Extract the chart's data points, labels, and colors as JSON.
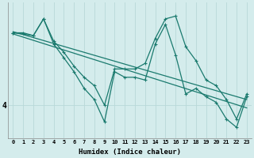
{
  "xlabel": "Humidex (Indice chaleur)",
  "ylabel": "",
  "background_color": "#d4ecec",
  "grid_color": "#b8d8d8",
  "line_color": "#1a7a6e",
  "x_ticks": [
    0,
    1,
    2,
    3,
    4,
    5,
    6,
    7,
    8,
    9,
    10,
    11,
    12,
    13,
    14,
    15,
    16,
    17,
    18,
    19,
    20,
    21,
    22,
    23
  ],
  "series": [
    {
      "x": [
        0,
        1,
        2,
        3,
        4,
        5,
        6,
        7,
        8,
        9,
        10,
        11,
        12,
        13,
        14,
        15,
        16,
        17,
        18,
        19,
        20,
        21,
        22,
        23
      ],
      "y": [
        5.3,
        5.3,
        5.25,
        5.55,
        5.15,
        4.95,
        4.7,
        4.5,
        4.35,
        4.0,
        4.65,
        4.65,
        4.65,
        4.75,
        5.2,
        5.55,
        5.6,
        5.05,
        4.8,
        4.45,
        4.35,
        4.1,
        3.75,
        4.2
      ],
      "markers": true
    },
    {
      "x": [
        0,
        2,
        3,
        4,
        5,
        6,
        7,
        8,
        9,
        10,
        11,
        12,
        13,
        14,
        15,
        16,
        17,
        18,
        19,
        20,
        21,
        22,
        23
      ],
      "y": [
        5.3,
        5.25,
        5.55,
        5.1,
        4.85,
        4.6,
        4.3,
        4.1,
        3.7,
        4.6,
        4.5,
        4.5,
        4.45,
        5.1,
        5.45,
        4.9,
        4.2,
        4.3,
        4.15,
        4.05,
        3.75,
        3.6,
        4.15
      ],
      "markers": true
    },
    {
      "x": [
        0,
        23
      ],
      "y": [
        5.32,
        4.1
      ],
      "markers": false
    },
    {
      "x": [
        0,
        23
      ],
      "y": [
        5.28,
        3.95
      ],
      "markers": false
    }
  ],
  "ytick_labels": [
    "4"
  ],
  "ytick_positions": [
    4.0
  ],
  "ymin": 3.4,
  "ymax": 5.85,
  "marker": "+",
  "markersize": 3,
  "linewidth": 0.9
}
